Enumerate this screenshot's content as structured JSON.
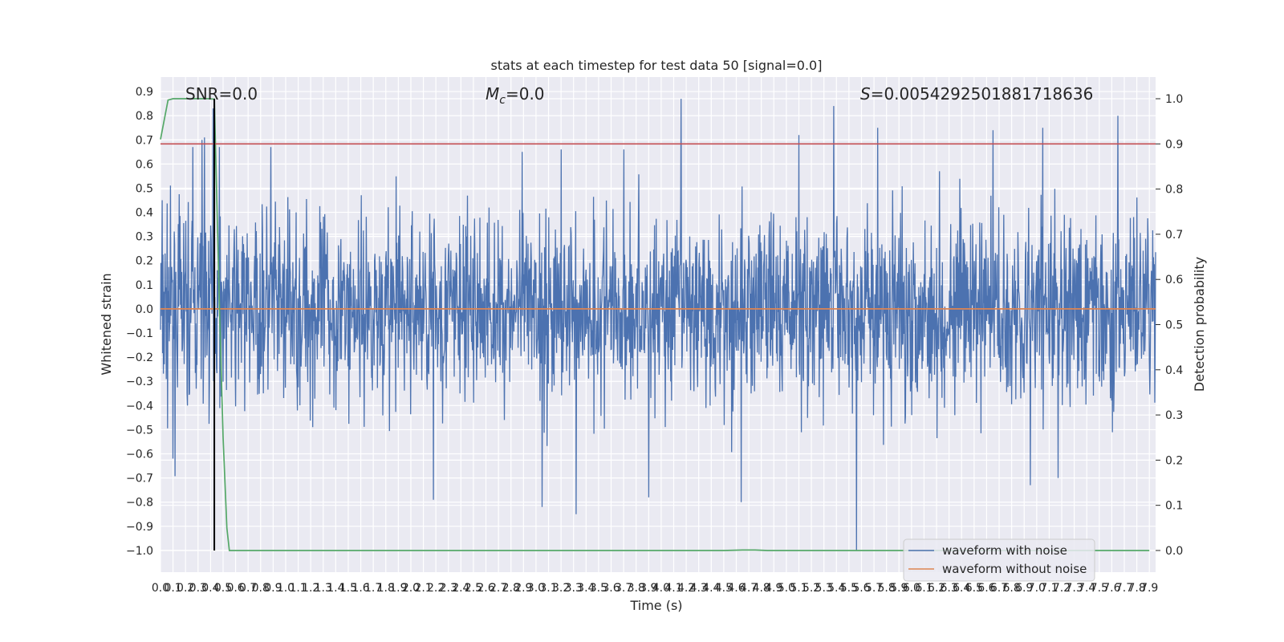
{
  "chart_data": {
    "type": "line",
    "title": "stats at each timestep for test data 50 [signal=0.0]",
    "xlabel": "Time (s)",
    "ylabel": "Whitened strain",
    "y2label": "Detection probability",
    "xlim": [
      0.0,
      7.95
    ],
    "ylim": [
      -1.09,
      0.96
    ],
    "y2lim": [
      -0.048,
      1.048
    ],
    "x_tick_step": 0.1,
    "x_tick_range": [
      0.0,
      7.9
    ],
    "y_ticks": [
      -1.0,
      -0.9,
      -0.8,
      -0.7,
      -0.6,
      -0.5,
      -0.4,
      -0.3,
      -0.2,
      -0.1,
      0.0,
      0.1,
      0.2,
      0.3,
      0.4,
      0.5,
      0.6,
      0.7,
      0.8,
      0.9
    ],
    "y_tick_labels": [
      "−1.0",
      "−0.9",
      "−0.8",
      "−0.7",
      "−0.6",
      "−0.5",
      "−0.4",
      "−0.3",
      "−0.2",
      "−0.1",
      "0.0",
      "0.1",
      "0.2",
      "0.3",
      "0.4",
      "0.5",
      "0.6",
      "0.7",
      "0.8",
      "0.9"
    ],
    "y2_ticks": [
      0.0,
      0.1,
      0.2,
      0.3,
      0.4,
      0.5,
      0.6,
      0.7,
      0.8,
      0.9,
      1.0
    ],
    "y2_tick_labels": [
      "0.0",
      "0.1",
      "0.2",
      "0.3",
      "0.4",
      "0.5",
      "0.6",
      "0.7",
      "0.8",
      "0.9",
      "1.0"
    ],
    "grid": true,
    "legend_position": "bottom-right",
    "annotations": {
      "snr": "SNR=0.0",
      "mc_symbol": "M",
      "mc_subscript": "c",
      "mc_value": "=0.0",
      "s_symbol": "S",
      "s_value": "=0.0054292501881718636"
    },
    "series": [
      {
        "name": "waveform with noise",
        "color": "#4c72b0",
        "kind": "noise",
        "x_range": [
          0.0,
          7.95
        ],
        "typical_amplitude": 0.35,
        "peaks": [
          {
            "x": 0.26,
            "y": 0.67
          },
          {
            "x": 0.33,
            "y": 0.7
          },
          {
            "x": 0.35,
            "y": 0.71
          },
          {
            "x": 0.42,
            "y": 0.83
          },
          {
            "x": 0.47,
            "y": 0.67
          },
          {
            "x": 0.88,
            "y": 0.67
          },
          {
            "x": 2.89,
            "y": 0.65
          },
          {
            "x": 3.2,
            "y": 0.66
          },
          {
            "x": 3.7,
            "y": 0.66
          },
          {
            "x": 4.16,
            "y": 0.87
          },
          {
            "x": 5.1,
            "y": 0.72
          },
          {
            "x": 5.38,
            "y": 0.84
          },
          {
            "x": 5.73,
            "y": 0.75
          },
          {
            "x": 6.65,
            "y": 0.74
          },
          {
            "x": 7.05,
            "y": 0.75
          },
          {
            "x": 7.65,
            "y": 0.8
          }
        ],
        "troughs": [
          {
            "x": 0.1,
            "y": -0.62
          },
          {
            "x": 2.18,
            "y": -0.79
          },
          {
            "x": 3.05,
            "y": -0.82
          },
          {
            "x": 3.32,
            "y": -0.85
          },
          {
            "x": 3.9,
            "y": -0.78
          },
          {
            "x": 4.64,
            "y": -0.8
          },
          {
            "x": 5.56,
            "y": -1.0
          },
          {
            "x": 6.95,
            "y": -0.73
          },
          {
            "x": 7.17,
            "y": -0.7
          }
        ]
      },
      {
        "name": "waveform without noise",
        "color": "#dd8452",
        "x": [
          0.0,
          7.95
        ],
        "y": [
          0.0,
          0.0
        ]
      },
      {
        "name": "detection probability",
        "color": "#55a868",
        "axis": "right",
        "x": [
          0.0,
          0.06,
          0.1,
          0.2,
          0.3,
          0.38,
          0.43,
          0.47,
          0.5,
          0.53,
          0.55,
          0.6,
          4.5,
          4.65,
          4.75,
          4.85,
          7.9
        ],
        "y": [
          0.91,
          0.997,
          1.0,
          1.0,
          1.0,
          1.0,
          0.999,
          0.55,
          0.25,
          0.05,
          0.0,
          0.0,
          0.0,
          0.001,
          0.001,
          0.0,
          0.0
        ]
      }
    ],
    "reference_lines": [
      {
        "orientation": "horizontal",
        "axis": "right",
        "value": 0.9,
        "color": "#c44e52"
      },
      {
        "orientation": "vertical",
        "value": 0.43,
        "color": "#000000"
      }
    ],
    "legend": [
      {
        "label": "waveform with noise",
        "color": "#4c72b0"
      },
      {
        "label": "waveform without noise",
        "color": "#dd8452"
      }
    ]
  }
}
